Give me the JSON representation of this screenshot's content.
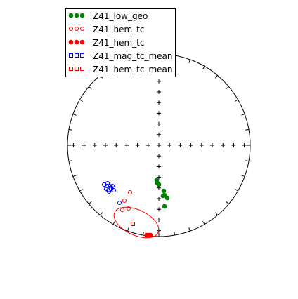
{
  "chart_data": {
    "type": "scatter",
    "projection": "equal-area stereonet",
    "grid": false,
    "legend_placement": "top-left",
    "series": [
      {
        "name": "Z41_low_geo",
        "marker": "filled-circle",
        "color": "#008000",
        "points": [
          [
            8,
            87
          ],
          [
            6,
            72
          ],
          [
            12,
            75
          ],
          [
            8,
            71
          ],
          [
            7,
            65
          ],
          [
            0,
            56
          ],
          [
            -2,
            54
          ],
          [
            -3,
            50
          ]
        ]
      },
      {
        "name": "Z41_hem_tc",
        "marker": "open-circle",
        "color": "#ff0000",
        "points": [
          [
            -49,
            79
          ],
          [
            -52,
            92
          ],
          [
            -43,
            90
          ],
          [
            -41,
            67
          ]
        ]
      },
      {
        "name": "Z41_hem_tc",
        "marker": "filled-circle",
        "color": "#ff0000",
        "points": [
          [
            -17,
            128
          ],
          [
            -14,
            128
          ],
          [
            -12,
            128
          ]
        ]
      },
      {
        "name": "Z41_mag_tc_mean",
        "marker": "open-square",
        "color": "#0000ff",
        "points": [
          [
            -70,
            61
          ]
        ]
      },
      {
        "name": "Z41_hem_tc_mean",
        "marker": "open-square",
        "color": "#ff0000",
        "points": [
          [
            -37,
            112
          ]
        ]
      }
    ],
    "extra_points": {
      "color": "#0000ff",
      "marker": "open-circle",
      "points": [
        [
          -78,
          56
        ],
        [
          -74,
          58
        ],
        [
          -70,
          58
        ],
        [
          -72,
          64
        ],
        [
          -75,
          62
        ],
        [
          -68,
          62
        ],
        [
          -73,
          54
        ],
        [
          -66,
          58
        ],
        [
          -64,
          64
        ],
        [
          -71,
          66
        ],
        [
          -56,
          82
        ]
      ]
    },
    "ellipses": [
      {
        "color": "#ff0000",
        "cx": -32,
        "cy": 110,
        "rx": 34,
        "ry": 18,
        "rotation": 25
      },
      {
        "color": "#0000ff",
        "cx": -71,
        "cy": 61,
        "rx": 6,
        "ry": 5,
        "rotation": 0
      }
    ]
  }
}
